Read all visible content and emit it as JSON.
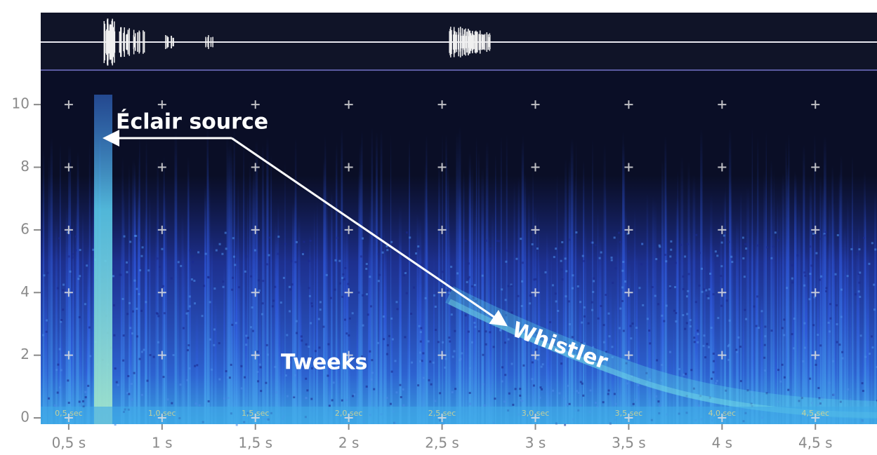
{
  "chart_data": {
    "type": "spectrogram",
    "xlim": [
      0.35,
      4.83
    ],
    "ylim": [
      -0.2,
      11.1
    ],
    "xticks": [
      {
        "value": 0.5,
        "label": "0,5 s"
      },
      {
        "value": 1,
        "label": "1 s"
      },
      {
        "value": 1.5,
        "label": "1,5 s"
      },
      {
        "value": 2,
        "label": "2 s"
      },
      {
        "value": 2.5,
        "label": "2,5 s"
      },
      {
        "value": 3,
        "label": "3 s"
      },
      {
        "value": 3.5,
        "label": "3,5 s"
      },
      {
        "value": 4,
        "label": "4 s"
      },
      {
        "value": 4.5,
        "label": "4,5 s"
      }
    ],
    "yticks": [
      0,
      2,
      4,
      6,
      8,
      10
    ],
    "inner_labels": [
      "0,5 sec",
      "1,0 sec",
      "1,5 sec",
      "2,0 sec",
      "2,5 sec",
      "3,0 sec",
      "3,5 sec",
      "4,0 sec",
      "4,5 sec"
    ],
    "annotations": [
      "Éclair source",
      "Whistler",
      "Tweeks"
    ],
    "grid": true
  }
}
